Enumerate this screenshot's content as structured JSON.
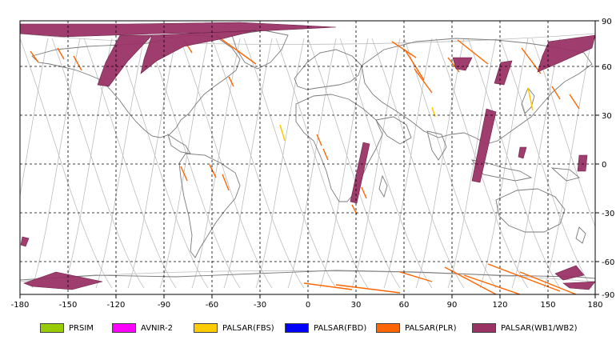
{
  "map": {
    "lon_ticks": [
      "-180",
      "-150",
      "-120",
      "-90",
      "-60",
      "-30",
      "0",
      "30",
      "60",
      "90",
      "120",
      "150",
      "180"
    ],
    "lat_ticks": [
      "90",
      "60",
      "30",
      "0",
      "-30",
      "-60",
      "-90"
    ]
  },
  "legend": [
    {
      "label": "PRSIM",
      "color": "#99cc00"
    },
    {
      "label": "AVNIR-2",
      "color": "#ff00ff"
    },
    {
      "label": "PALSAR(FBS)",
      "color": "#ffcc00"
    },
    {
      "label": "PALSAR(FBD)",
      "color": "#0000ff"
    },
    {
      "label": "PALSAR(PLR)",
      "color": "#ff6600"
    },
    {
      "label": "PALSAR(WB1/WB2)",
      "color": "#993366"
    }
  ]
}
